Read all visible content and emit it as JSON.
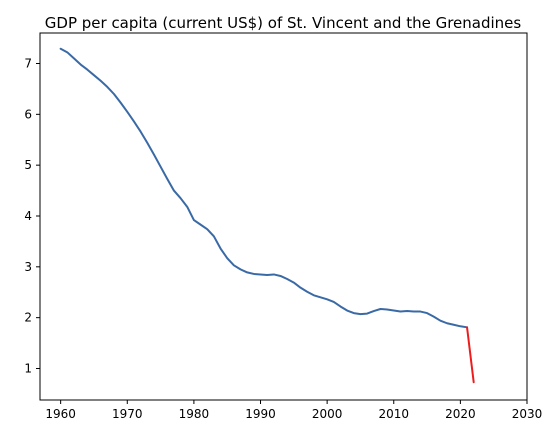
{
  "chart_data": {
    "type": "line",
    "title": "GDP per capita (current US$) of St. Vincent and the Grenadines",
    "xlabel": "",
    "ylabel": "",
    "xlim": [
      1956.9,
      2030
    ],
    "ylim": [
      0.38,
      7.6
    ],
    "x_ticks": [
      1960,
      1970,
      1980,
      1990,
      2000,
      2010,
      2020,
      2030
    ],
    "y_ticks": [
      1,
      2,
      3,
      4,
      5,
      6,
      7
    ],
    "grid": false,
    "legend": "none",
    "series": [
      {
        "color": "#3a6aa6",
        "x": [
          1960,
          1961,
          1962,
          1963,
          1964,
          1965,
          1966,
          1967,
          1968,
          1969,
          1970,
          1971,
          1972,
          1973,
          1974,
          1975,
          1976,
          1977,
          1978,
          1979,
          1980,
          1981,
          1982,
          1983,
          1984,
          1985,
          1986,
          1987,
          1988,
          1989,
          1990,
          1991,
          1992,
          1993,
          1994,
          1995,
          1996,
          1997,
          1998,
          1999,
          2000,
          2001,
          2002,
          2003,
          2004,
          2005,
          2006,
          2007,
          2008,
          2009,
          2010,
          2011,
          2012,
          2013,
          2014,
          2015,
          2016,
          2017,
          2018,
          2019,
          2020,
          2021
        ],
        "values": [
          7.29,
          7.22,
          7.1,
          6.98,
          6.88,
          6.77,
          6.66,
          6.54,
          6.4,
          6.23,
          6.05,
          5.86,
          5.66,
          5.44,
          5.21,
          4.97,
          4.73,
          4.5,
          4.35,
          4.18,
          3.92,
          3.83,
          3.74,
          3.6,
          3.36,
          3.17,
          3.03,
          2.95,
          2.89,
          2.86,
          2.85,
          2.84,
          2.85,
          2.82,
          2.76,
          2.69,
          2.59,
          2.51,
          2.44,
          2.4,
          2.36,
          2.31,
          2.22,
          2.14,
          2.09,
          2.07,
          2.08,
          2.13,
          2.17,
          2.16,
          2.14,
          2.12,
          2.13,
          2.12,
          2.12,
          2.09,
          2.02,
          1.94,
          1.89,
          1.86,
          1.83,
          1.81
        ]
      },
      {
        "color": "#ee1c1c",
        "x": [
          2021,
          2022
        ],
        "values": [
          1.81,
          0.73
        ]
      }
    ]
  }
}
